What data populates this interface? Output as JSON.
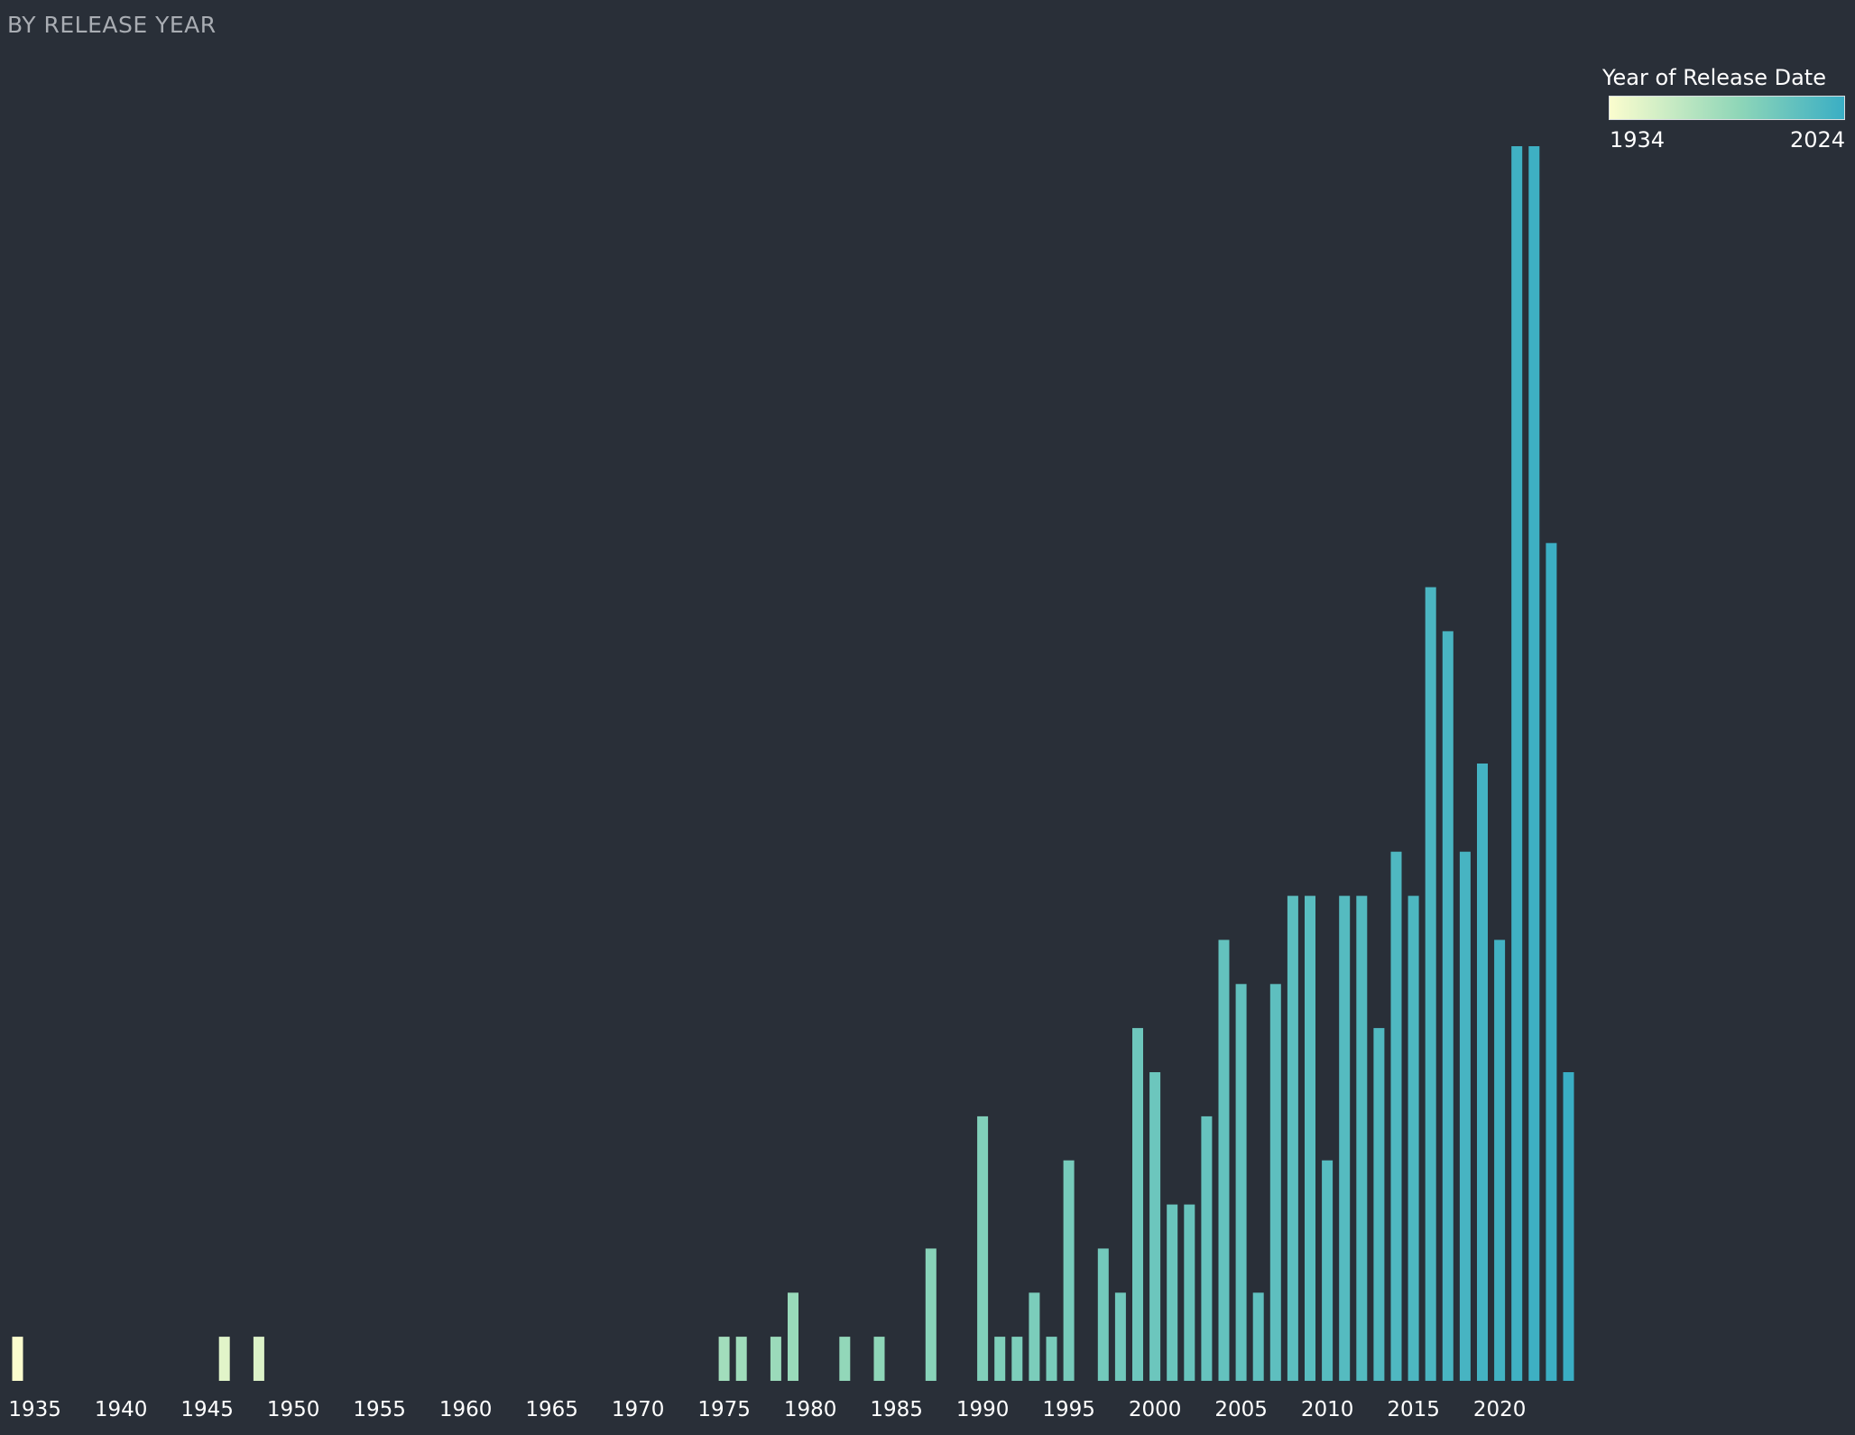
{
  "chart_data": {
    "type": "bar",
    "title": "BY RELEASE YEAR",
    "xlabel": "",
    "ylabel": "",
    "legend": {
      "title": "Year of Release Date",
      "min_label": "1934",
      "max_label": "2024",
      "min": 1934,
      "max": 2024,
      "color_low": "#fbfdce",
      "color_mid": "#8fd6b8",
      "color_high": "#3aaec4"
    },
    "x_range": [
      1934,
      2024
    ],
    "ylim": [
      0,
      28
    ],
    "x_ticks": [
      1935,
      1940,
      1945,
      1950,
      1955,
      1960,
      1965,
      1970,
      1975,
      1980,
      1985,
      1990,
      1995,
      2000,
      2005,
      2010,
      2015,
      2020
    ],
    "x": [
      1934,
      1946,
      1948,
      1975,
      1976,
      1978,
      1979,
      1982,
      1984,
      1987,
      1990,
      1991,
      1992,
      1993,
      1994,
      1995,
      1997,
      1998,
      1999,
      2000,
      2001,
      2002,
      2003,
      2004,
      2005,
      2006,
      2007,
      2008,
      2009,
      2010,
      2011,
      2012,
      2013,
      2014,
      2015,
      2016,
      2017,
      2018,
      2019,
      2020,
      2021,
      2022,
      2023,
      2024
    ],
    "values": [
      1,
      1,
      1,
      1,
      1,
      1,
      2,
      1,
      1,
      3,
      6,
      1,
      1,
      2,
      1,
      5,
      3,
      2,
      8,
      7,
      4,
      4,
      6,
      10,
      9,
      2,
      9,
      11,
      11,
      5,
      11,
      11,
      8,
      12,
      11,
      18,
      17,
      12,
      14,
      10,
      28,
      28,
      19,
      7
    ],
    "grid": false,
    "legend_position": "top-right"
  },
  "colors": {
    "background": "#292f38",
    "title_text": "#a9adb3",
    "tick_text": "#ffffff"
  }
}
